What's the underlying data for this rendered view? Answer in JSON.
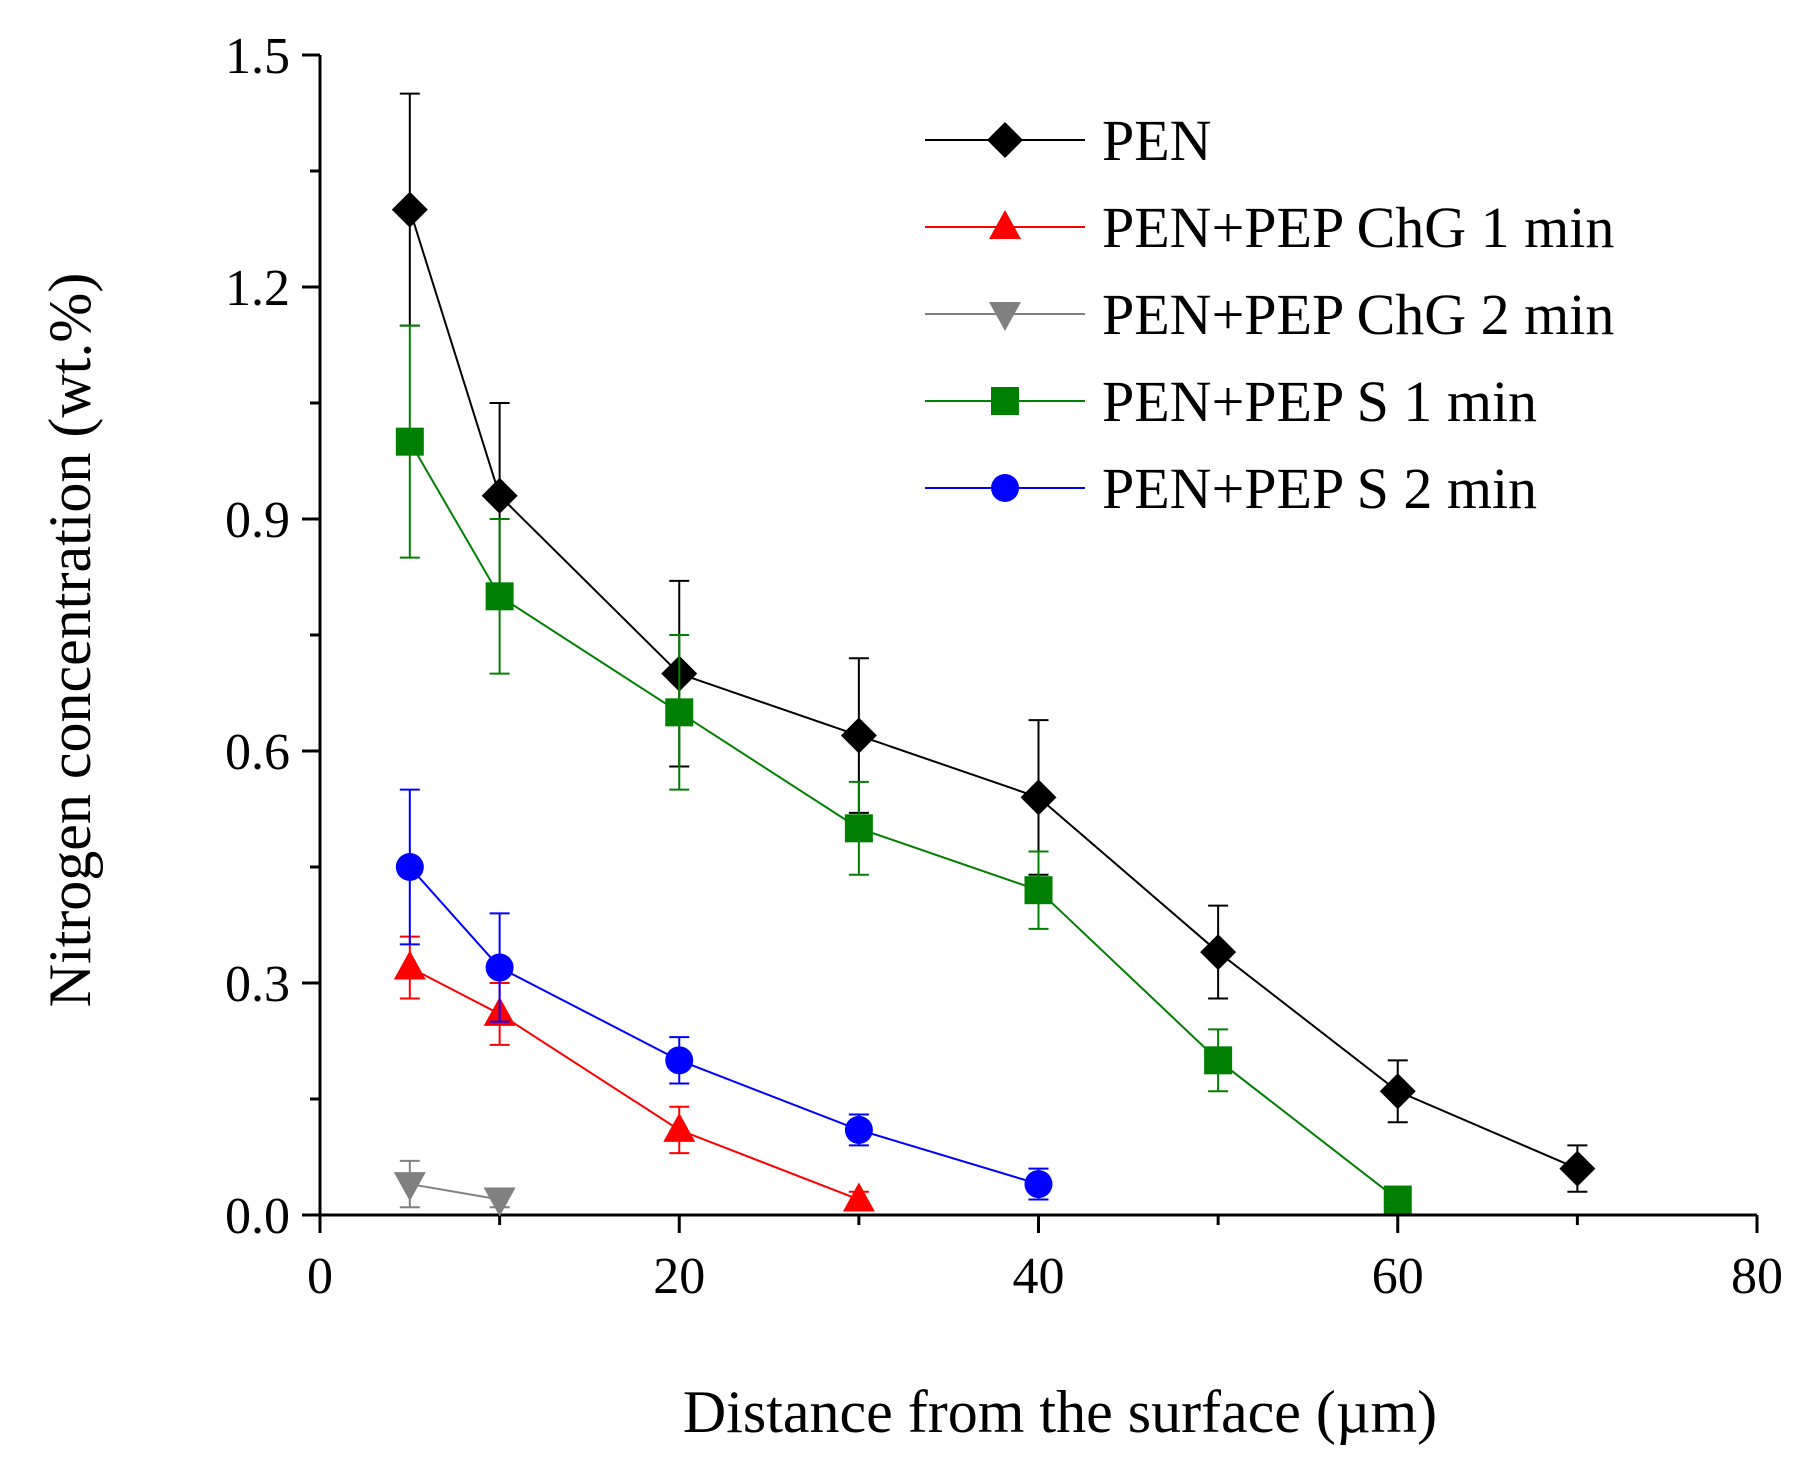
{
  "chart_data": {
    "type": "line",
    "title": "",
    "xlabel": "Distance from the surface (µm)",
    "ylabel": "Nitrogen concentration (wt.%)",
    "xlim": [
      0,
      80
    ],
    "ylim": [
      0,
      1.5
    ],
    "xticks": [
      0,
      20,
      40,
      60,
      80
    ],
    "yticks": [
      0.0,
      0.3,
      0.6,
      0.9,
      1.2,
      1.5
    ],
    "xtick_labels": [
      "0",
      "20",
      "40",
      "60",
      "80"
    ],
    "ytick_labels": [
      "0.0",
      "0.3",
      "0.6",
      "0.9",
      "1.2",
      "1.5"
    ],
    "grid": false,
    "legend_position": "top-right",
    "series": [
      {
        "name": "PEN",
        "color": "#000000",
        "marker": "diamond",
        "x": [
          5,
          10,
          20,
          30,
          40,
          50,
          60,
          70
        ],
        "y": [
          1.3,
          0.93,
          0.7,
          0.62,
          0.54,
          0.34,
          0.16,
          0.06
        ],
        "err": [
          0.15,
          0.12,
          0.12,
          0.1,
          0.1,
          0.06,
          0.04,
          0.03
        ]
      },
      {
        "name": "PEN+PEP ChG 1 min",
        "color": "#ff0000",
        "marker": "triangle-up",
        "x": [
          5,
          10,
          20,
          30
        ],
        "y": [
          0.32,
          0.26,
          0.11,
          0.02
        ],
        "err": [
          0.04,
          0.04,
          0.03,
          0.01
        ]
      },
      {
        "name": "PEN+PEP ChG 2 min",
        "color": "#808080",
        "marker": "triangle-down",
        "x": [
          5,
          10
        ],
        "y": [
          0.04,
          0.02
        ],
        "err": [
          0.03,
          0.01
        ]
      },
      {
        "name": "PEN+PEP S 1 min",
        "color": "#008000",
        "marker": "square",
        "x": [
          5,
          10,
          20,
          30,
          40,
          50,
          60
        ],
        "y": [
          1.0,
          0.8,
          0.65,
          0.5,
          0.42,
          0.2,
          0.02
        ],
        "err": [
          0.15,
          0.1,
          0.1,
          0.06,
          0.05,
          0.04,
          0.01
        ]
      },
      {
        "name": "PEN+PEP S 2 min",
        "color": "#0000ff",
        "marker": "circle",
        "x": [
          5,
          10,
          20,
          30,
          40
        ],
        "y": [
          0.45,
          0.32,
          0.2,
          0.11,
          0.04
        ],
        "err": [
          0.1,
          0.07,
          0.03,
          0.02,
          0.02
        ]
      }
    ]
  }
}
